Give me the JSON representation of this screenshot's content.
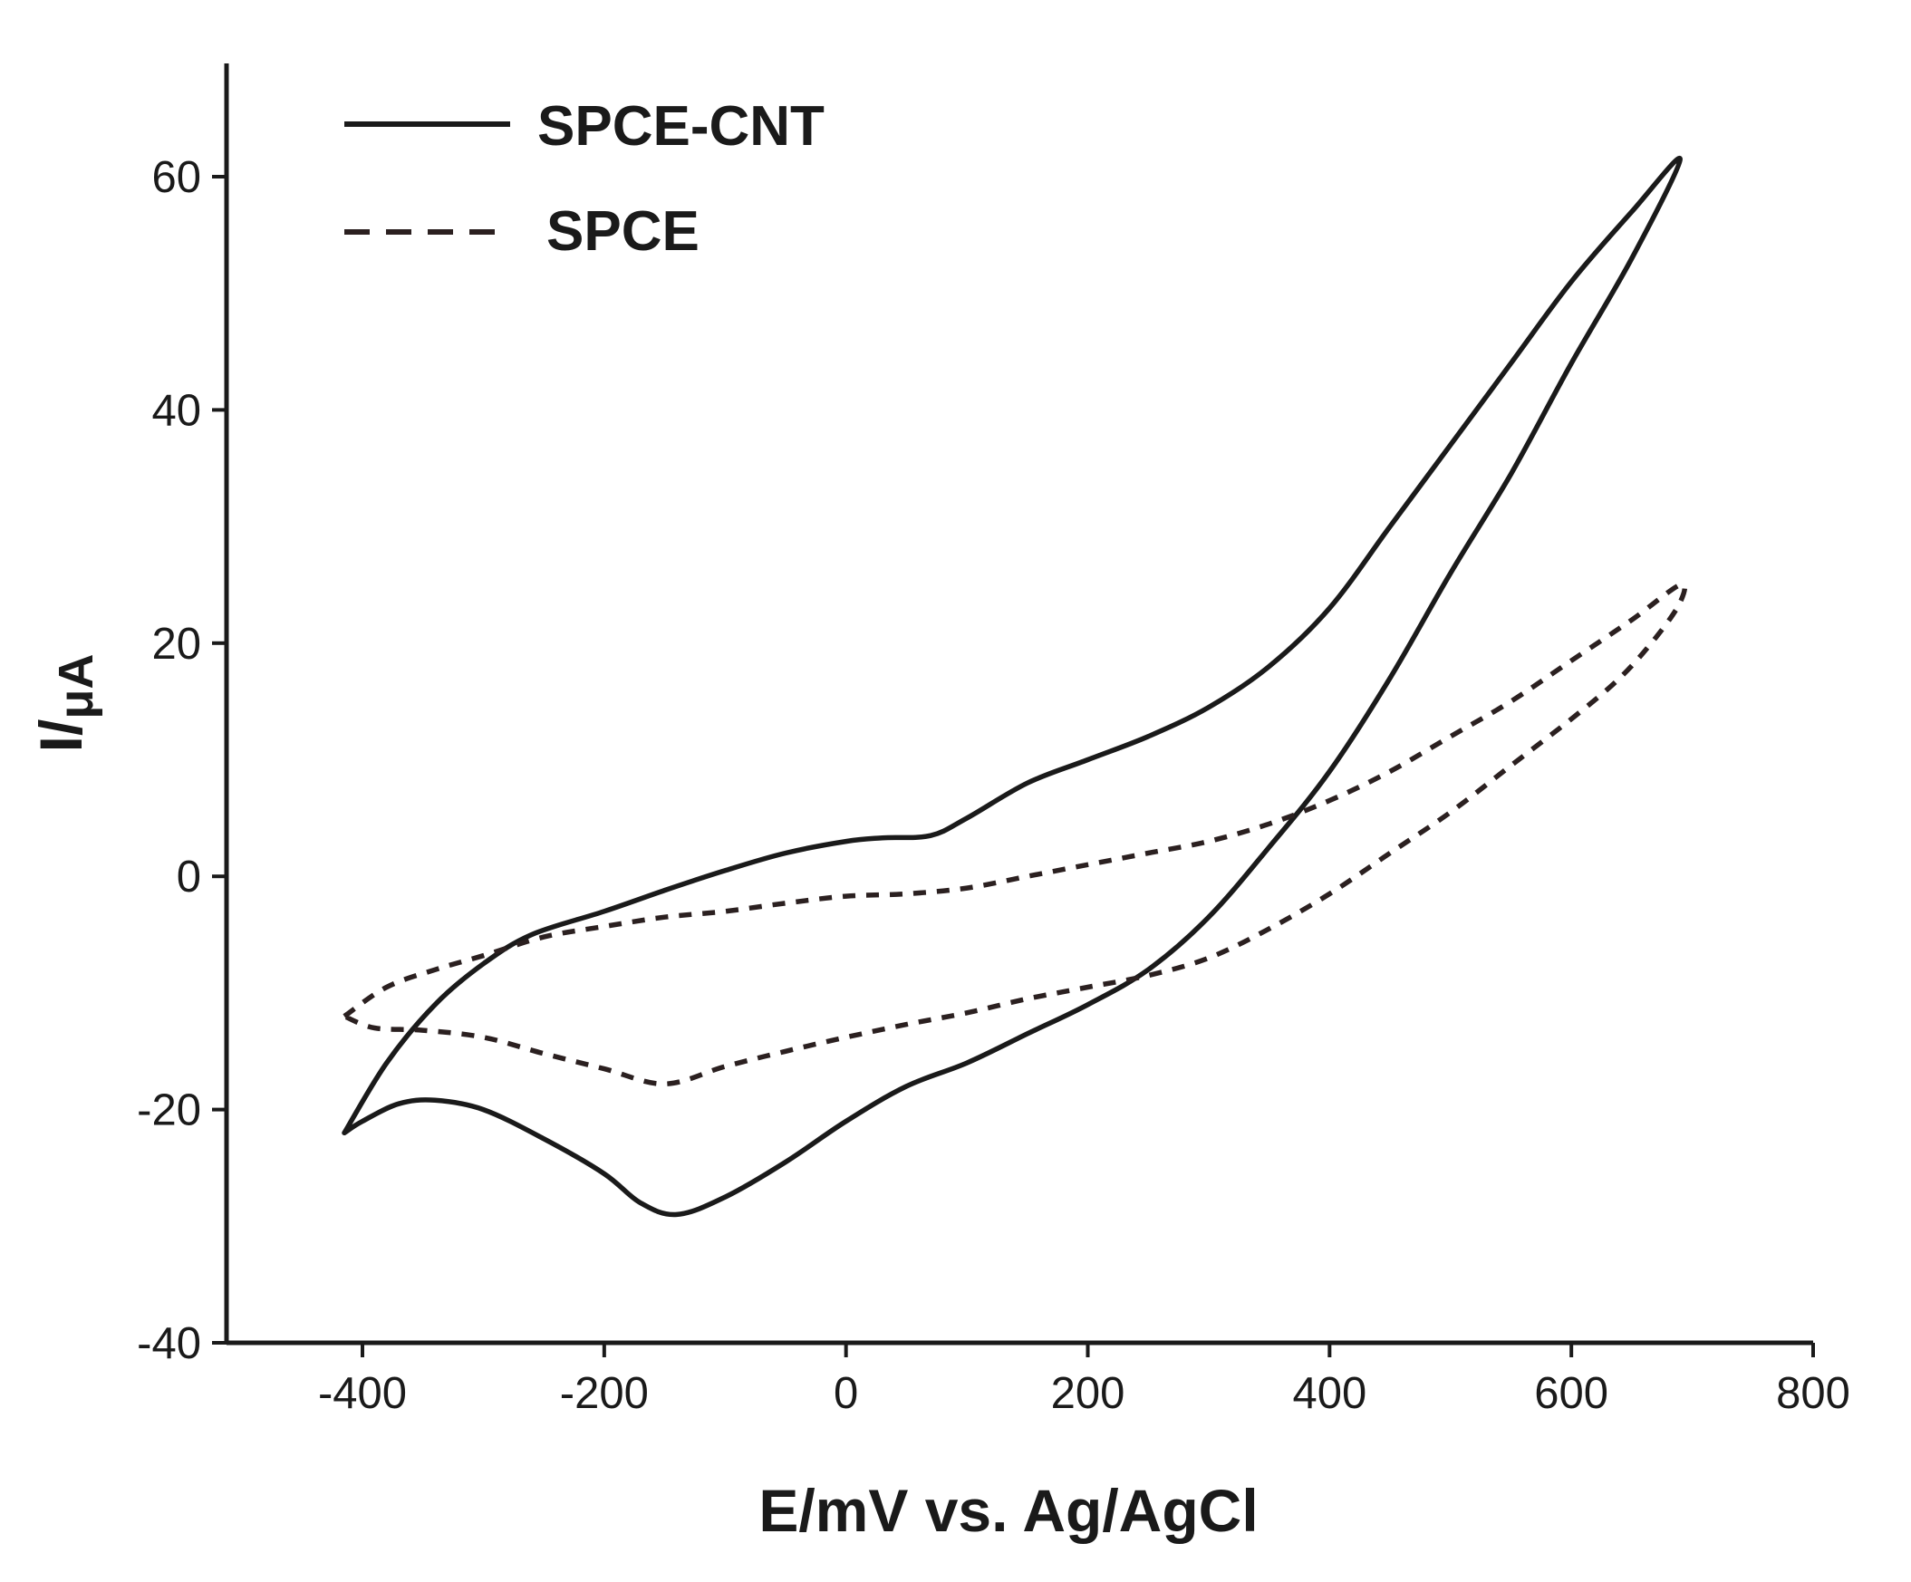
{
  "chart_data": {
    "type": "line",
    "title": "",
    "xlabel": "E/mV vs. Ag/AgCl",
    "ylabel_main": "I/",
    "ylabel_unit": "μA",
    "xlim": [
      -500,
      800
    ],
    "ylim": [
      -40,
      70
    ],
    "x_ticks": [
      -400,
      -200,
      0,
      200,
      400,
      600,
      800
    ],
    "y_ticks": [
      -40,
      -20,
      0,
      20,
      40,
      60
    ],
    "x_tick_labels": [
      "-400",
      "-200",
      "0",
      "200",
      "400",
      "600",
      "800"
    ],
    "y_tick_labels": [
      "-40",
      "-20",
      "0",
      "20",
      "40",
      "60"
    ],
    "legend": {
      "position": "top-left"
    },
    "series": [
      {
        "name": "SPCE-CNT",
        "style": "solid",
        "color": "#1a1a1a",
        "points": [
          [
            -415,
            -22
          ],
          [
            -380,
            -16
          ],
          [
            -340,
            -11
          ],
          [
            -300,
            -7.5
          ],
          [
            -260,
            -5
          ],
          [
            -200,
            -3
          ],
          [
            -150,
            -1.2
          ],
          [
            -100,
            0.5
          ],
          [
            -50,
            2
          ],
          [
            0,
            3
          ],
          [
            30,
            3.3
          ],
          [
            70,
            3.5
          ],
          [
            100,
            5
          ],
          [
            150,
            8
          ],
          [
            200,
            10
          ],
          [
            250,
            12
          ],
          [
            300,
            14.5
          ],
          [
            350,
            18
          ],
          [
            400,
            23
          ],
          [
            450,
            30
          ],
          [
            500,
            37
          ],
          [
            550,
            44
          ],
          [
            600,
            51
          ],
          [
            650,
            57
          ],
          [
            690,
            61.5
          ],
          [
            650,
            53
          ],
          [
            600,
            44
          ],
          [
            550,
            34.5
          ],
          [
            500,
            26
          ],
          [
            450,
            17
          ],
          [
            400,
            9
          ],
          [
            350,
            2.5
          ],
          [
            300,
            -3.5
          ],
          [
            250,
            -8
          ],
          [
            200,
            -11
          ],
          [
            150,
            -13.5
          ],
          [
            100,
            -16
          ],
          [
            50,
            -18
          ],
          [
            0,
            -21
          ],
          [
            -50,
            -24.5
          ],
          [
            -100,
            -27.5
          ],
          [
            -140,
            -29
          ],
          [
            -170,
            -28
          ],
          [
            -200,
            -25.5
          ],
          [
            -250,
            -22.5
          ],
          [
            -300,
            -20
          ],
          [
            -340,
            -19.2
          ],
          [
            -370,
            -19.5
          ],
          [
            -400,
            -21
          ],
          [
            -415,
            -22
          ]
        ]
      },
      {
        "name": "SPCE",
        "style": "dashed",
        "color": "#2b2020",
        "points": [
          [
            -415,
            -12
          ],
          [
            -380,
            -9.5
          ],
          [
            -340,
            -8
          ],
          [
            -300,
            -6.8
          ],
          [
            -250,
            -5.2
          ],
          [
            -200,
            -4.3
          ],
          [
            -150,
            -3.5
          ],
          [
            -100,
            -3
          ],
          [
            -50,
            -2.3
          ],
          [
            0,
            -1.7
          ],
          [
            50,
            -1.5
          ],
          [
            100,
            -1
          ],
          [
            150,
            0
          ],
          [
            200,
            1
          ],
          [
            250,
            2
          ],
          [
            300,
            3
          ],
          [
            350,
            4.5
          ],
          [
            400,
            6.5
          ],
          [
            450,
            9
          ],
          [
            500,
            12
          ],
          [
            550,
            15
          ],
          [
            600,
            18.5
          ],
          [
            650,
            22
          ],
          [
            690,
            25
          ],
          [
            690,
            23.5
          ],
          [
            670,
            20.5
          ],
          [
            640,
            17
          ],
          [
            600,
            13.5
          ],
          [
            550,
            9.5
          ],
          [
            500,
            5.5
          ],
          [
            450,
            2
          ],
          [
            400,
            -1.5
          ],
          [
            350,
            -4.5
          ],
          [
            300,
            -7
          ],
          [
            250,
            -8.5
          ],
          [
            200,
            -9.5
          ],
          [
            150,
            -10.5
          ],
          [
            100,
            -11.7
          ],
          [
            50,
            -12.7
          ],
          [
            0,
            -13.8
          ],
          [
            -50,
            -15
          ],
          [
            -100,
            -16.3
          ],
          [
            -150,
            -17.8
          ],
          [
            -200,
            -16.5
          ],
          [
            -250,
            -15.2
          ],
          [
            -300,
            -13.8
          ],
          [
            -350,
            -13.2
          ],
          [
            -390,
            -13
          ],
          [
            -415,
            -12
          ]
        ]
      }
    ]
  }
}
